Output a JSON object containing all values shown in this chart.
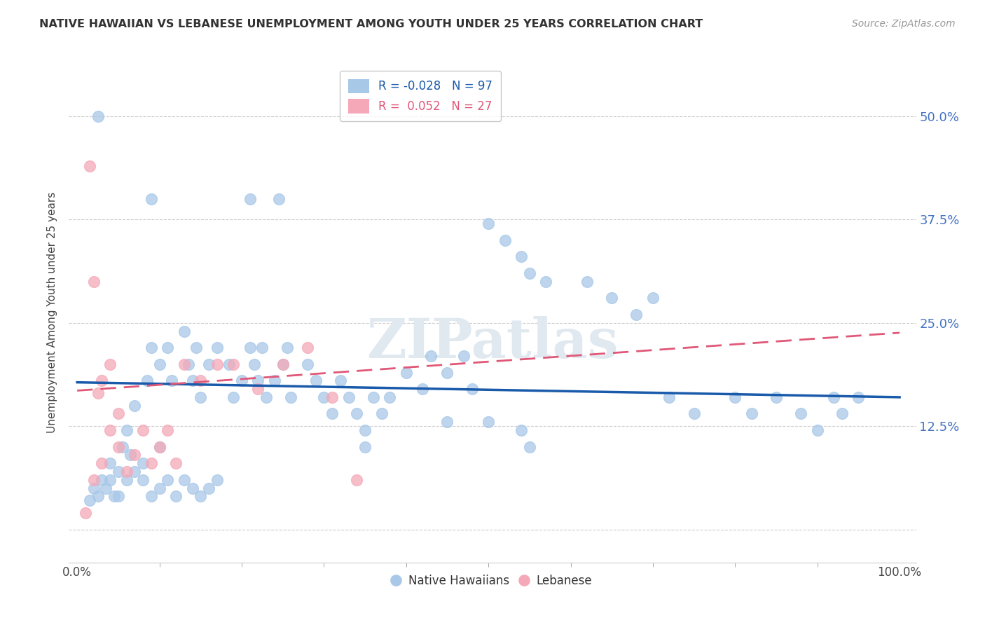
{
  "title": "NATIVE HAWAIIAN VS LEBANESE UNEMPLOYMENT AMONG YOUTH UNDER 25 YEARS CORRELATION CHART",
  "source": "Source: ZipAtlas.com",
  "ylabel": "Unemployment Among Youth under 25 years",
  "xlim": [
    -0.01,
    1.02
  ],
  "ylim": [
    -0.04,
    0.565
  ],
  "yticks": [
    0.0,
    0.125,
    0.25,
    0.375,
    0.5
  ],
  "ytick_labels": [
    "",
    "12.5%",
    "25.0%",
    "37.5%",
    "50.0%"
  ],
  "xticks": [
    0.0,
    1.0
  ],
  "xtick_labels": [
    "0.0%",
    "100.0%"
  ],
  "blue_R": -0.028,
  "blue_N": 97,
  "pink_R": 0.052,
  "pink_N": 27,
  "blue_color": "#a8c8e8",
  "pink_color": "#f4a8b8",
  "blue_line_color": "#1a5aaa",
  "pink_line_color": "#e05878",
  "background_color": "#ffffff",
  "grid_color": "#cccccc",
  "watermark": "ZIPatlas",
  "blue_trend_x0": 0.0,
  "blue_trend_y0": 0.178,
  "blue_trend_x1": 1.0,
  "blue_trend_y1": 0.16,
  "pink_trend_x0": 0.0,
  "pink_trend_y0": 0.168,
  "pink_trend_x1": 1.0,
  "pink_trend_y1": 0.238,
  "blue_x": [
    0.025,
    0.09,
    0.21,
    0.245,
    0.02,
    0.03,
    0.04,
    0.045,
    0.05,
    0.055,
    0.06,
    0.065,
    0.07,
    0.08,
    0.085,
    0.09,
    0.1,
    0.1,
    0.11,
    0.115,
    0.13,
    0.135,
    0.14,
    0.145,
    0.15,
    0.16,
    0.17,
    0.185,
    0.19,
    0.2,
    0.21,
    0.215,
    0.22,
    0.225,
    0.23,
    0.24,
    0.25,
    0.255,
    0.26,
    0.28,
    0.29,
    0.3,
    0.31,
    0.32,
    0.33,
    0.34,
    0.35,
    0.36,
    0.37,
    0.38,
    0.4,
    0.42,
    0.43,
    0.45,
    0.47,
    0.48,
    0.5,
    0.52,
    0.54,
    0.55,
    0.57,
    0.62,
    0.65,
    0.68,
    0.7,
    0.72,
    0.75,
    0.8,
    0.82,
    0.85,
    0.88,
    0.9,
    0.92,
    0.93,
    0.95,
    0.015,
    0.025,
    0.035,
    0.04,
    0.05,
    0.06,
    0.07,
    0.08,
    0.09,
    0.1,
    0.11,
    0.12,
    0.13,
    0.14,
    0.15,
    0.16,
    0.17,
    0.45,
    0.5,
    0.54,
    0.35,
    0.55
  ],
  "blue_y": [
    0.5,
    0.4,
    0.4,
    0.4,
    0.05,
    0.06,
    0.08,
    0.04,
    0.07,
    0.1,
    0.12,
    0.09,
    0.15,
    0.08,
    0.18,
    0.22,
    0.2,
    0.1,
    0.22,
    0.18,
    0.24,
    0.2,
    0.18,
    0.22,
    0.16,
    0.2,
    0.22,
    0.2,
    0.16,
    0.18,
    0.22,
    0.2,
    0.18,
    0.22,
    0.16,
    0.18,
    0.2,
    0.22,
    0.16,
    0.2,
    0.18,
    0.16,
    0.14,
    0.18,
    0.16,
    0.14,
    0.12,
    0.16,
    0.14,
    0.16,
    0.19,
    0.17,
    0.21,
    0.19,
    0.21,
    0.17,
    0.37,
    0.35,
    0.33,
    0.31,
    0.3,
    0.3,
    0.28,
    0.26,
    0.28,
    0.16,
    0.14,
    0.16,
    0.14,
    0.16,
    0.14,
    0.12,
    0.16,
    0.14,
    0.16,
    0.035,
    0.04,
    0.05,
    0.06,
    0.04,
    0.06,
    0.07,
    0.06,
    0.04,
    0.05,
    0.06,
    0.04,
    0.06,
    0.05,
    0.04,
    0.05,
    0.06,
    0.13,
    0.13,
    0.12,
    0.1,
    0.1
  ],
  "pink_x": [
    0.015,
    0.025,
    0.02,
    0.01,
    0.02,
    0.03,
    0.03,
    0.04,
    0.04,
    0.05,
    0.05,
    0.06,
    0.07,
    0.08,
    0.09,
    0.1,
    0.11,
    0.12,
    0.13,
    0.15,
    0.17,
    0.19,
    0.22,
    0.25,
    0.28,
    0.31,
    0.34
  ],
  "pink_y": [
    0.44,
    0.165,
    0.3,
    0.02,
    0.06,
    0.08,
    0.18,
    0.12,
    0.2,
    0.1,
    0.14,
    0.07,
    0.09,
    0.12,
    0.08,
    0.1,
    0.12,
    0.08,
    0.2,
    0.18,
    0.2,
    0.2,
    0.17,
    0.2,
    0.22,
    0.16,
    0.06
  ]
}
